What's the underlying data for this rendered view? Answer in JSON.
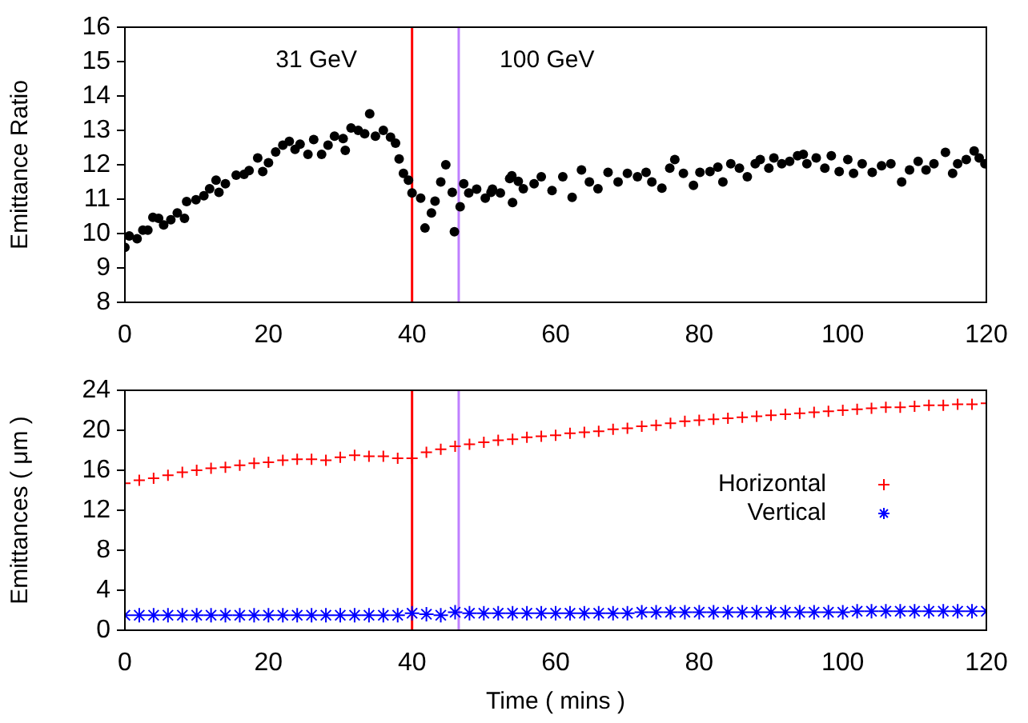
{
  "chart_data": [
    {
      "type": "scatter",
      "ylabel": "Emittance Ratio",
      "marker": "circle",
      "color": "#000000",
      "x": [
        0,
        0.6,
        1.7,
        2.5,
        3.2,
        3.9,
        4.7,
        5.4,
        6.4,
        7.3,
        8.3,
        8.6,
        9.9,
        11,
        11.8,
        12.7,
        13.1,
        14,
        15.5,
        16.6,
        17.3,
        18.5,
        19.2,
        20,
        21,
        22,
        22.9,
        23.7,
        24.4,
        25.5,
        26.3,
        27.4,
        28.3,
        29.2,
        30.4,
        30.7,
        31.5,
        32.5,
        33.4,
        34.1,
        34.9,
        36,
        37,
        37.7,
        38.2,
        38.8,
        39.5,
        40,
        41.2,
        41.8,
        42.7,
        43.2,
        44,
        44.7,
        45.6,
        45.9,
        46.7,
        47.2,
        47.9,
        49,
        50.2,
        51,
        51.2,
        52.3,
        53.6,
        53.9,
        54,
        54.8,
        55.5,
        57,
        58,
        59.5,
        61,
        62.3,
        63.6,
        64.7,
        65.9,
        67.3,
        68.7,
        70,
        71.4,
        72.6,
        73.4,
        74.8,
        75.9,
        76.6,
        77.8,
        79.2,
        80.1,
        81.5,
        82.6,
        83.3,
        84.4,
        85.6,
        86.7,
        87.8,
        88.5,
        89.7,
        90.4,
        91.5,
        92.6,
        93.7,
        94.5,
        95,
        96.3,
        97.5,
        98.4,
        99.5,
        100.7,
        101.5,
        102.7,
        104.1,
        105.4,
        106.7,
        108.2,
        109.3,
        110.5,
        111.6,
        112.7,
        114.3,
        115.3,
        116,
        117.2,
        118.3,
        119,
        119.8
      ],
      "values": [
        9.6,
        9.93,
        9.85,
        10.1,
        10.1,
        10.47,
        10.44,
        10.25,
        10.4,
        10.6,
        10.44,
        10.93,
        10.98,
        11.1,
        11.3,
        11.55,
        11.2,
        11.45,
        11.7,
        11.72,
        11.83,
        12.2,
        11.8,
        12.06,
        12.37,
        12.57,
        12.68,
        12.45,
        12.6,
        12.3,
        12.73,
        12.3,
        12.57,
        12.83,
        12.76,
        12.42,
        13.07,
        13,
        12.9,
        13.48,
        12.83,
        13,
        12.8,
        12.63,
        12.17,
        11.75,
        11.55,
        11.18,
        11.03,
        10.16,
        10.6,
        10.94,
        11.5,
        12,
        11.2,
        10.05,
        10.78,
        11.45,
        11.18,
        11.29,
        11.03,
        11.2,
        11.29,
        11.18,
        11.6,
        11.68,
        10.9,
        11.52,
        11.3,
        11.45,
        11.65,
        11.25,
        11.65,
        11.05,
        11.85,
        11.5,
        11.3,
        11.78,
        11.5,
        11.75,
        11.65,
        11.78,
        11.5,
        11.32,
        11.9,
        12.15,
        11.75,
        11.4,
        11.78,
        11.8,
        11.93,
        11.5,
        12.03,
        11.9,
        11.65,
        12.03,
        12.15,
        11.9,
        12.2,
        12.03,
        12.1,
        12.26,
        12.3,
        12.03,
        12.2,
        11.9,
        12.26,
        11.8,
        12.15,
        11.75,
        12.03,
        11.78,
        11.97,
        12.03,
        11.5,
        11.85,
        12.1,
        11.85,
        12.03,
        12.36,
        11.75,
        12.03,
        12.15,
        12.4,
        12.2,
        12.03
      ],
      "xlim": [
        0,
        120
      ],
      "xticks": [
        0,
        20,
        40,
        60,
        80,
        100,
        120
      ],
      "ylim": [
        8,
        16
      ],
      "yticks": [
        8,
        9,
        10,
        11,
        12,
        13,
        14,
        15,
        16
      ],
      "ref_lines": [
        {
          "axis": "x",
          "value": 40,
          "color": "#ff0000"
        },
        {
          "axis": "x",
          "value": 46.5,
          "color": "#bf80ff"
        }
      ],
      "annotations": [
        "31 GeV",
        "100 GeV"
      ]
    },
    {
      "type": "scatter",
      "xlabel": "Time ( mins )",
      "ylabel": "Emittances ( μm )",
      "legend": "right",
      "x": [
        0,
        2,
        4,
        6,
        8,
        10,
        12,
        14,
        16,
        18,
        20,
        22,
        24,
        26,
        28,
        30,
        32,
        34,
        36,
        38,
        40,
        42,
        44,
        46,
        48,
        50,
        52,
        54,
        56,
        58,
        60,
        62,
        64,
        66,
        68,
        70,
        72,
        74,
        76,
        78,
        80,
        82,
        84,
        86,
        88,
        90,
        92,
        94,
        96,
        98,
        100,
        102,
        104,
        106,
        108,
        110,
        112,
        114,
        116,
        118,
        120
      ],
      "series": [
        {
          "name": "Horizontal",
          "color": "#ff0000",
          "marker": "cross",
          "values": [
            14.7,
            15.0,
            15.2,
            15.5,
            15.8,
            16.0,
            16.2,
            16.3,
            16.5,
            16.7,
            16.8,
            17.0,
            17.1,
            17.1,
            17.0,
            17.3,
            17.5,
            17.4,
            17.4,
            17.2,
            17.2,
            17.8,
            18.1,
            18.4,
            18.6,
            18.8,
            19.0,
            19.1,
            19.3,
            19.4,
            19.5,
            19.7,
            19.8,
            19.9,
            20.1,
            20.2,
            20.4,
            20.5,
            20.7,
            20.9,
            21.0,
            21.1,
            21.2,
            21.3,
            21.4,
            21.5,
            21.6,
            21.7,
            21.8,
            21.9,
            22.0,
            22.1,
            22.2,
            22.3,
            22.3,
            22.4,
            22.5,
            22.5,
            22.6,
            22.6,
            22.7
          ]
        },
        {
          "name": "Vertical",
          "color": "#0000ff",
          "values": [
            1.5,
            1.5,
            1.5,
            1.5,
            1.5,
            1.5,
            1.5,
            1.5,
            1.5,
            1.5,
            1.5,
            1.5,
            1.5,
            1.5,
            1.5,
            1.5,
            1.5,
            1.5,
            1.5,
            1.5,
            1.7,
            1.6,
            1.5,
            1.8,
            1.7,
            1.7,
            1.7,
            1.7,
            1.7,
            1.7,
            1.7,
            1.7,
            1.7,
            1.7,
            1.7,
            1.7,
            1.8,
            1.8,
            1.8,
            1.8,
            1.8,
            1.8,
            1.8,
            1.8,
            1.8,
            1.8,
            1.8,
            1.8,
            1.8,
            1.8,
            1.8,
            1.9,
            1.9,
            1.9,
            1.9,
            1.9,
            1.9,
            1.9,
            1.9,
            1.9,
            1.9
          ]
        }
      ],
      "xlim": [
        0,
        120
      ],
      "xticks": [
        0,
        20,
        40,
        60,
        80,
        100,
        120
      ],
      "ylim": [
        0,
        24
      ],
      "yticks": [
        0,
        4,
        8,
        12,
        16,
        20,
        24
      ],
      "ref_lines": [
        {
          "axis": "x",
          "value": 40,
          "color": "#ff0000"
        },
        {
          "axis": "x",
          "value": 46.5,
          "color": "#bf80ff"
        }
      ]
    }
  ]
}
